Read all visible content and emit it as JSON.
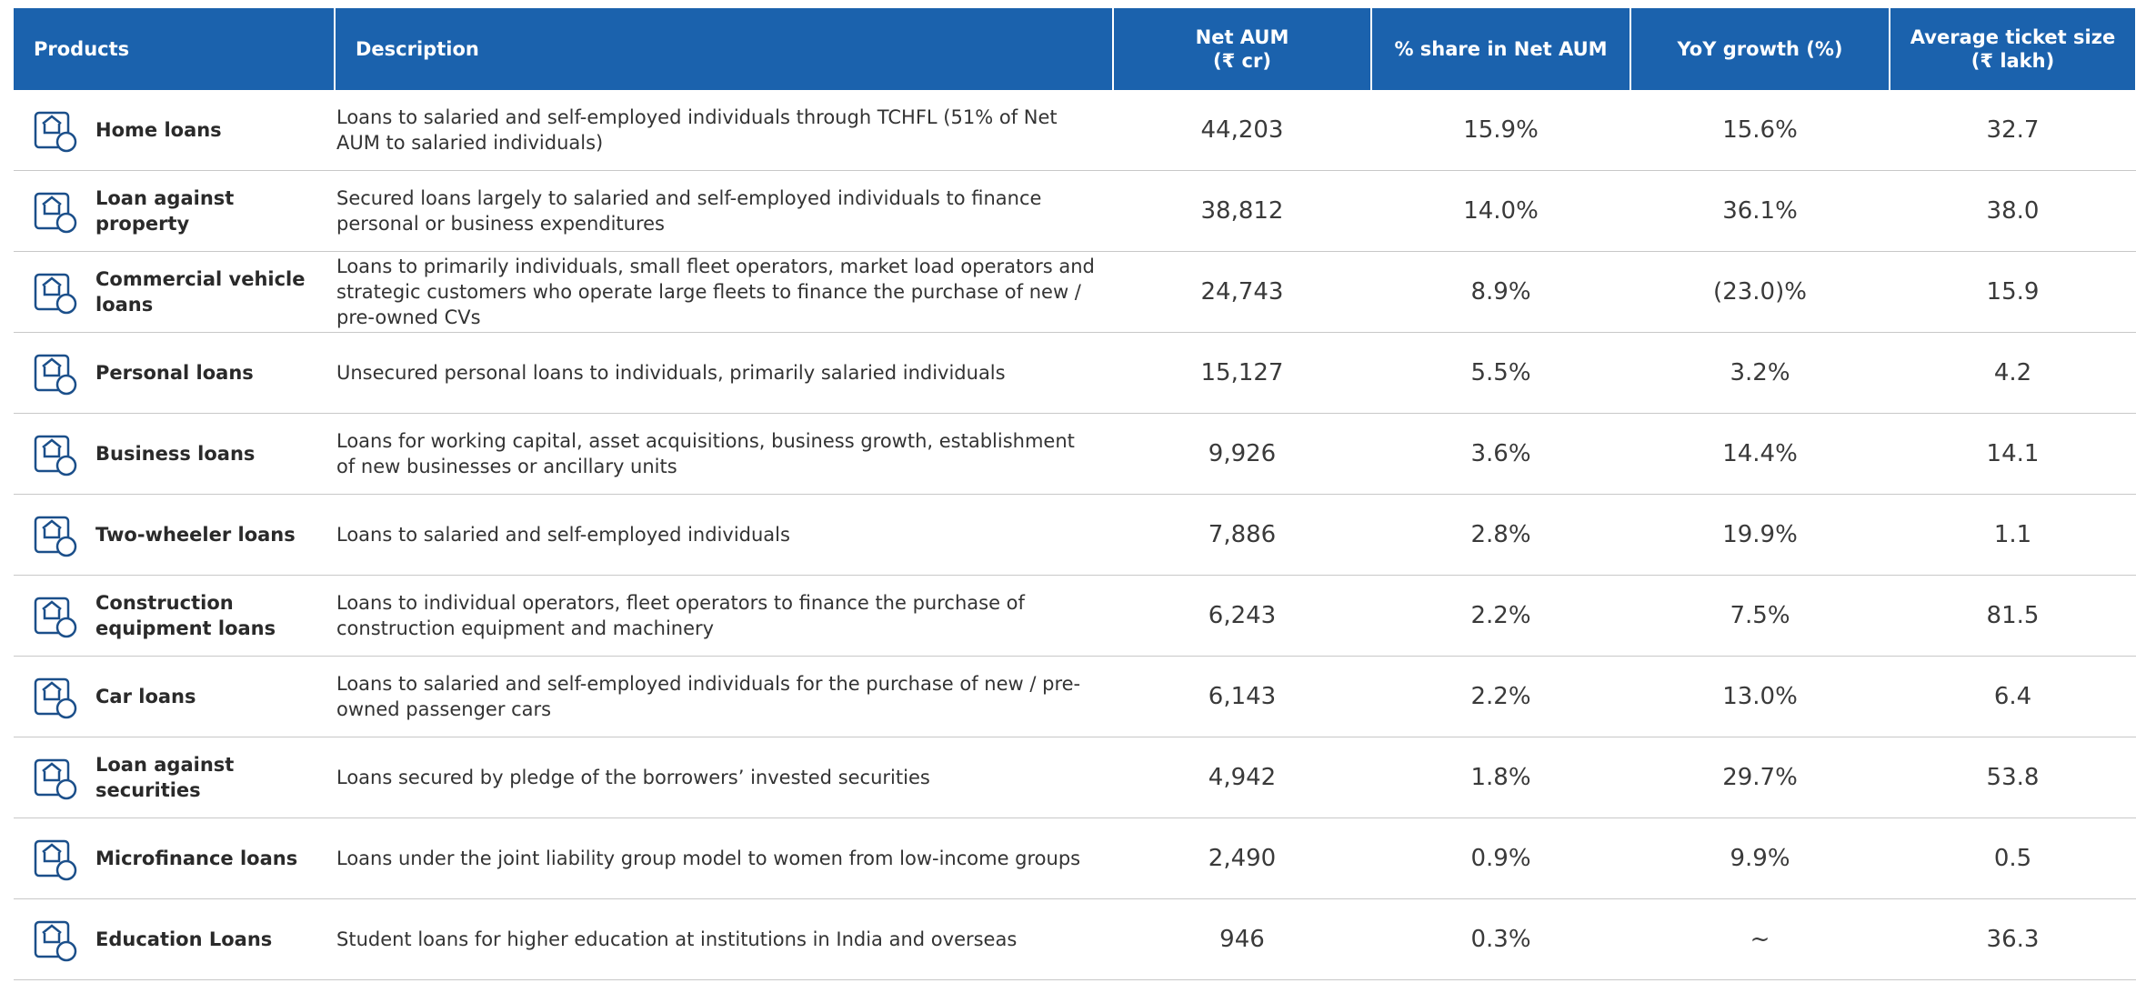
{
  "table": {
    "header": [
      "Products",
      "Description",
      "Net AUM\n(₹ cr)",
      "% share in Net AUM",
      "YoY growth (%)",
      "Average ticket size\n(₹ lakh)"
    ],
    "rows": [
      [
        "Home loans",
        "Loans to salaried and self-employed individuals through TCHFL (51% of Net AUM to salaried individuals)",
        "44,203",
        "15.9%",
        "15.6%",
        "32.7"
      ],
      [
        "Loan against property",
        "Secured loans largely to salaried and self-employed individuals to finance personal or business expenditures",
        "38,812",
        "14.0%",
        "36.1%",
        "38.0"
      ],
      [
        "Commercial vehicle loans",
        "Loans to primarily individuals, small fleet operators, market load operators and strategic customers who operate large fleets to finance the purchase of new / pre-owned CVs",
        "24,743",
        "8.9%",
        "(23.0)%",
        "15.9"
      ],
      [
        "Personal loans",
        "Unsecured personal loans to individuals, primarily salaried individuals",
        "15,127",
        "5.5%",
        "3.2%",
        "4.2"
      ],
      [
        "Business loans",
        "Loans for working capital, asset acquisitions, business growth, establishment of new businesses or ancillary units",
        "9,926",
        "3.6%",
        "14.4%",
        "14.1"
      ],
      [
        "Two-wheeler loans",
        "Loans to salaried and self-employed individuals",
        "7,886",
        "2.8%",
        "19.9%",
        "1.1"
      ],
      [
        "Construction equipment loans",
        "Loans to individual operators, fleet operators to finance the purchase of construction equipment and machinery",
        "6,243",
        "2.2%",
        "7.5%",
        "81.5"
      ],
      [
        "Car loans",
        "Loans to salaried and self-employed individuals for the purchase of new / pre-owned passenger cars",
        "6,143",
        "2.2%",
        "13.0%",
        "6.4"
      ],
      [
        "Loan against securities",
        "Loans secured by pledge of the borrowers’ invested securities",
        "4,942",
        "1.8%",
        "29.7%",
        "53.8"
      ],
      [
        "Microfinance loans",
        "Loans under the joint liability group model to women from low-income groups",
        "2,490",
        "0.9%",
        "9.9%",
        "0.5"
      ],
      [
        "Education Loans",
        "Student loans for higher education at institutions in India and overseas",
        "946",
        "0.3%",
        "~",
        "36.3"
      ]
    ]
  }
}
